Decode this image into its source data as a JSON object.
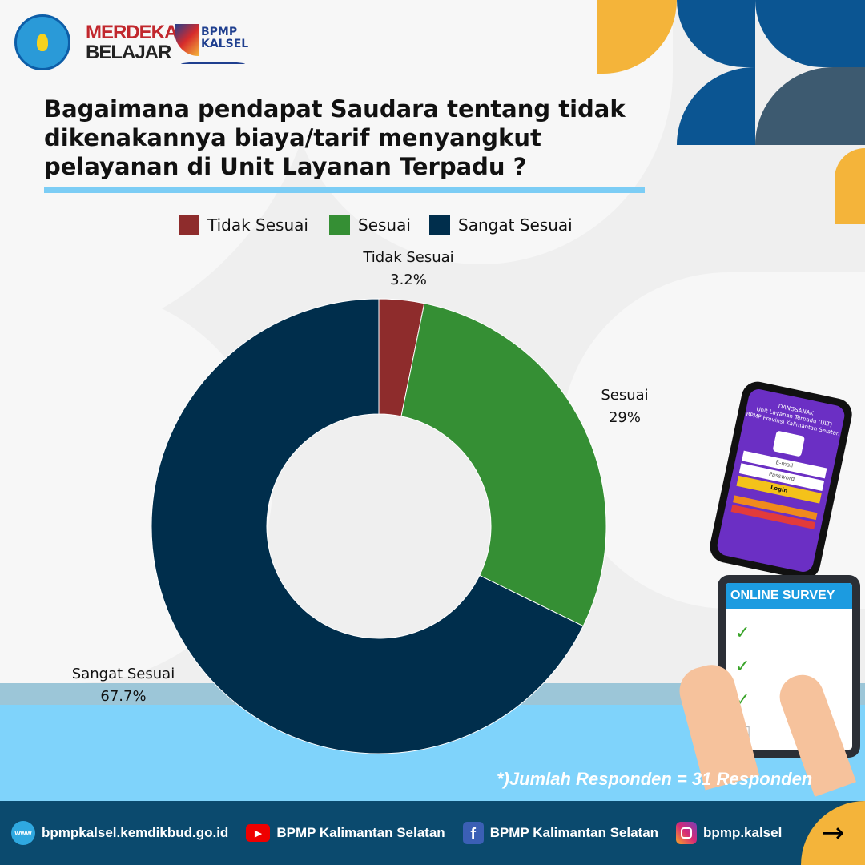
{
  "logos": {
    "tut_wuri": "TUT WURI HANDAYANI",
    "merdeka": "MERDEKA",
    "belajar": "BELAJAR",
    "bpmp": "BPMP",
    "kalsel": "KALSEL"
  },
  "title": "Bagaimana pendapat Saudara tentang tidak dikenakannya biaya/tarif menyangkut pelayanan di Unit Layanan Terpadu ?",
  "chart_data": {
    "type": "pie",
    "donut": true,
    "categories": [
      "Tidak Sesuai",
      "Sesuai",
      "Sangat Sesuai"
    ],
    "values": [
      3.2,
      29,
      67.7
    ],
    "labels": [
      "3.2%",
      "29%",
      "67.7%"
    ],
    "colors": [
      "#8e2c2c",
      "#358f34",
      "#002e4c"
    ],
    "legend": "top"
  },
  "note": "*)Jumlah Responden = 31 Responden",
  "illustration": {
    "phone_lines": [
      "DANGSANAK",
      "Unit Layanan Terpadu (ULT)",
      "BPMP Provinsi Kalimantan Selatan"
    ],
    "email": "E-mail",
    "password": "Password",
    "login": "Login",
    "survey": "ONLINE SURVEY"
  },
  "footer": {
    "website": "bpmpkalsel.kemdikbud.go.id",
    "youtube": "BPMP Kalimantan Selatan",
    "facebook": "BPMP Kalimantan Selatan",
    "instagram": "bpmp.kalsel",
    "arrow": "→"
  }
}
